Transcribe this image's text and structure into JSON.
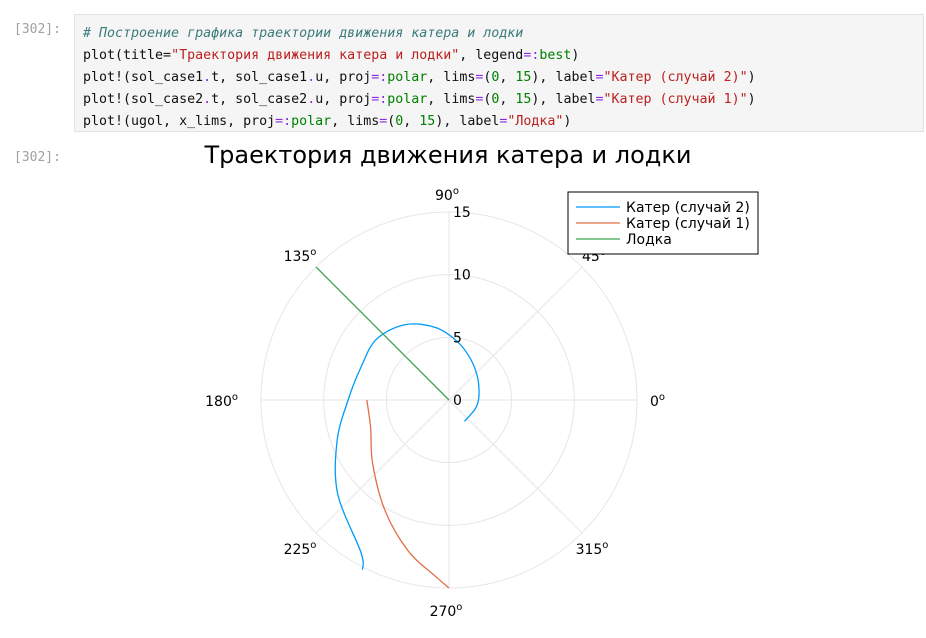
{
  "cell": {
    "in_prompt": "[302]:",
    "out_prompt": "[302]:",
    "code_lines": [
      [
        {
          "t": "# Построение графика траектории движения катера и лодки",
          "c": "c-comment"
        }
      ],
      [
        {
          "t": "plot(title=",
          "c": "c-fn"
        },
        {
          "t": "\"Траектория движения катера и лодки\"",
          "c": "c-str"
        },
        {
          "t": ", legend",
          "c": "c-fn"
        },
        {
          "t": "=:",
          "c": "c-sym"
        },
        {
          "t": "best",
          "c": "c-num"
        },
        {
          "t": ")",
          "c": "c-fn"
        }
      ],
      [
        {
          "t": "plot!(sol_case1",
          "c": "c-fn"
        },
        {
          "t": ".",
          "c": "c-sym"
        },
        {
          "t": "t, sol_case1",
          "c": "c-fn"
        },
        {
          "t": ".",
          "c": "c-sym"
        },
        {
          "t": "u, proj",
          "c": "c-fn"
        },
        {
          "t": "=:",
          "c": "c-sym"
        },
        {
          "t": "polar",
          "c": "c-num"
        },
        {
          "t": ", lims",
          "c": "c-fn"
        },
        {
          "t": "=",
          "c": "c-sym"
        },
        {
          "t": "(",
          "c": "c-fn"
        },
        {
          "t": "0",
          "c": "c-num"
        },
        {
          "t": ", ",
          "c": "c-fn"
        },
        {
          "t": "15",
          "c": "c-num"
        },
        {
          "t": "), label",
          "c": "c-fn"
        },
        {
          "t": "=",
          "c": "c-sym"
        },
        {
          "t": "\"Катер (случай 2)\"",
          "c": "c-str"
        },
        {
          "t": ")",
          "c": "c-fn"
        }
      ],
      [
        {
          "t": "plot!(sol_case2",
          "c": "c-fn"
        },
        {
          "t": ".",
          "c": "c-sym"
        },
        {
          "t": "t, sol_case2",
          "c": "c-fn"
        },
        {
          "t": ".",
          "c": "c-sym"
        },
        {
          "t": "u, proj",
          "c": "c-fn"
        },
        {
          "t": "=:",
          "c": "c-sym"
        },
        {
          "t": "polar",
          "c": "c-num"
        },
        {
          "t": ", lims",
          "c": "c-fn"
        },
        {
          "t": "=",
          "c": "c-sym"
        },
        {
          "t": "(",
          "c": "c-fn"
        },
        {
          "t": "0",
          "c": "c-num"
        },
        {
          "t": ", ",
          "c": "c-fn"
        },
        {
          "t": "15",
          "c": "c-num"
        },
        {
          "t": "), label",
          "c": "c-fn"
        },
        {
          "t": "=",
          "c": "c-sym"
        },
        {
          "t": "\"Катер (случай 1)\"",
          "c": "c-str"
        },
        {
          "t": ")",
          "c": "c-fn"
        }
      ],
      [
        {
          "t": "plot!(ugol, x_lims, proj",
          "c": "c-fn"
        },
        {
          "t": "=:",
          "c": "c-sym"
        },
        {
          "t": "polar",
          "c": "c-num"
        },
        {
          "t": ", lims",
          "c": "c-fn"
        },
        {
          "t": "=",
          "c": "c-sym"
        },
        {
          "t": "(",
          "c": "c-fn"
        },
        {
          "t": "0",
          "c": "c-num"
        },
        {
          "t": ", ",
          "c": "c-fn"
        },
        {
          "t": "15",
          "c": "c-num"
        },
        {
          "t": "), label",
          "c": "c-fn"
        },
        {
          "t": "=",
          "c": "c-sym"
        },
        {
          "t": "\"Лодка\"",
          "c": "c-str"
        },
        {
          "t": ")",
          "c": "c-fn"
        }
      ]
    ]
  },
  "chart_data": {
    "type": "polar-line",
    "title": "Траектория движения катера и лодки",
    "rlim": [
      0,
      15
    ],
    "r_ticks": [
      0,
      5,
      10,
      15
    ],
    "r_tick_labels": [
      "0",
      "5",
      "10",
      "15"
    ],
    "theta_ticks_deg": [
      0,
      45,
      90,
      135,
      180,
      225,
      270,
      315
    ],
    "theta_tick_labels": [
      "0",
      "45",
      "90",
      "135",
      "180",
      "225",
      "270",
      "315"
    ],
    "theta_unit_symbol": "o",
    "grid": true,
    "legend_position": "top-right",
    "series": [
      {
        "name": "Катер (случай 2)",
        "color": "#009AFA",
        "points_deg_r": [
          [
            -54,
            2.1
          ],
          [
            -20,
            2.2
          ],
          [
            0,
            2.35
          ],
          [
            20,
            2.55
          ],
          [
            40,
            2.95
          ],
          [
            60,
            3.6
          ],
          [
            80,
            4.6
          ],
          [
            100,
            5.85
          ],
          [
            120,
            6.95
          ],
          [
            140,
            7.55
          ],
          [
            160,
            7.5
          ],
          [
            180,
            8.05
          ],
          [
            200,
            9.5
          ],
          [
            220,
            11.6
          ],
          [
            240,
            14.05
          ],
          [
            243,
            15.2
          ]
        ]
      },
      {
        "name": "Катер (случай 1)",
        "color": "#E26F46",
        "points_deg_r": [
          [
            180,
            6.55
          ],
          [
            200,
            6.65
          ],
          [
            220,
            7.95
          ],
          [
            240,
            10.2
          ],
          [
            255,
            12.5
          ],
          [
            265,
            14.0
          ],
          [
            270,
            15.0
          ]
        ]
      },
      {
        "name": "Лодка",
        "color": "#3DA44D",
        "points_deg_r": [
          [
            135,
            0
          ],
          [
            135,
            15
          ]
        ]
      }
    ]
  }
}
